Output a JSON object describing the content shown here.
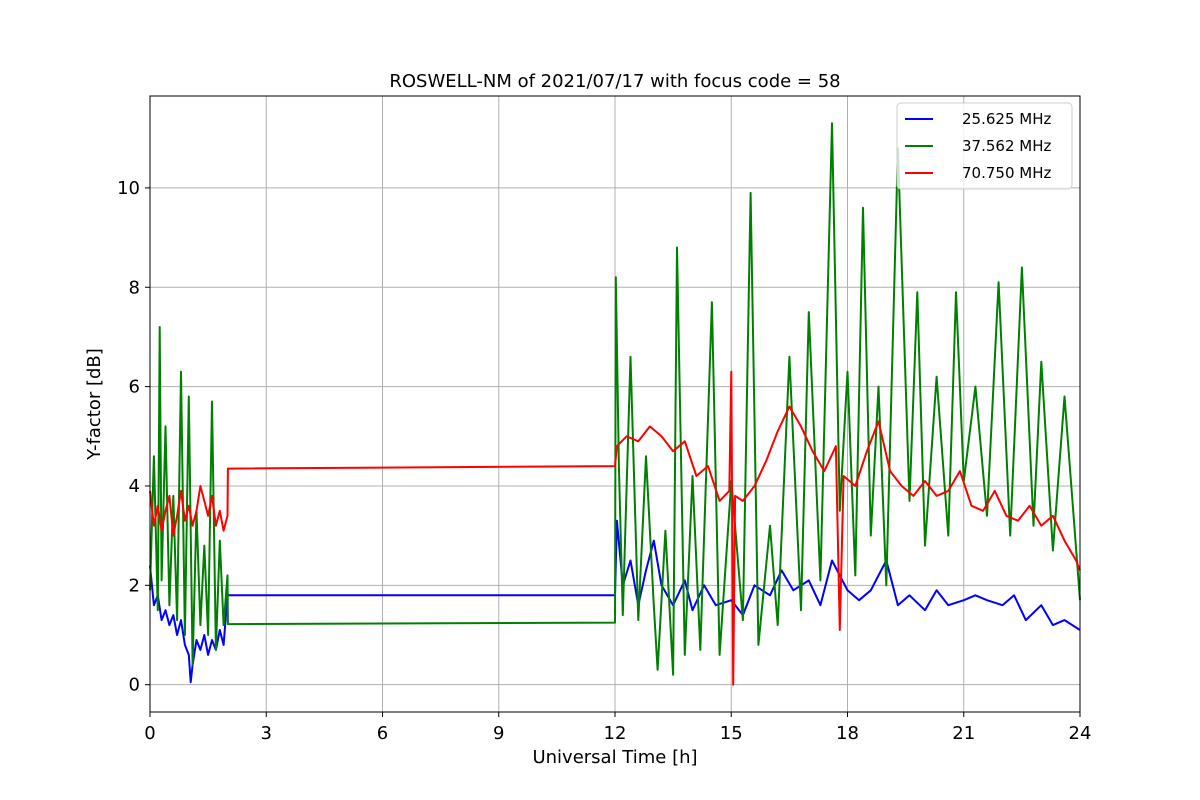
{
  "chart_data": {
    "type": "line",
    "title": "ROSWELL-NM of 2021/07/17 with focus code = 58",
    "xlabel": "Universal Time [h]",
    "ylabel": "Y-factor [dB]",
    "xlim": [
      0,
      24
    ],
    "ylim": [
      -0.55,
      11.85
    ],
    "xticks": [
      0,
      3,
      6,
      9,
      12,
      15,
      18,
      21,
      24
    ],
    "yticks": [
      0,
      2,
      4,
      6,
      8,
      10
    ],
    "grid": true,
    "legend_position": "top-right",
    "series": [
      {
        "name": "25.625 MHz",
        "color": "#0000ff",
        "x": [
          0,
          0.1,
          0.2,
          0.3,
          0.4,
          0.5,
          0.6,
          0.7,
          0.8,
          0.9,
          1.0,
          1.05,
          1.1,
          1.2,
          1.3,
          1.4,
          1.5,
          1.6,
          1.7,
          1.8,
          1.9,
          2.0,
          2.01,
          12.0,
          12.05,
          12.2,
          12.4,
          12.6,
          12.8,
          13.0,
          13.2,
          13.5,
          13.8,
          14.0,
          14.3,
          14.6,
          15.0,
          15.3,
          15.6,
          16.0,
          16.3,
          16.6,
          17.0,
          17.3,
          17.6,
          18.0,
          18.3,
          18.6,
          19.0,
          19.3,
          19.6,
          20.0,
          20.3,
          20.6,
          21.0,
          21.3,
          21.6,
          22.0,
          22.3,
          22.6,
          23.0,
          23.3,
          23.6,
          24.0
        ],
        "y": [
          2.4,
          1.6,
          1.8,
          1.3,
          1.5,
          1.2,
          1.4,
          1.0,
          1.3,
          0.8,
          0.6,
          0.05,
          0.4,
          0.9,
          0.7,
          1.0,
          0.6,
          0.9,
          0.7,
          1.1,
          0.8,
          1.8,
          1.8,
          1.8,
          3.3,
          2.0,
          2.5,
          1.6,
          2.3,
          2.9,
          2.0,
          1.6,
          2.1,
          1.5,
          2.0,
          1.6,
          1.7,
          1.4,
          2.0,
          1.8,
          2.3,
          1.9,
          2.1,
          1.6,
          2.5,
          1.9,
          1.7,
          1.9,
          2.5,
          1.6,
          1.8,
          1.5,
          1.9,
          1.6,
          1.7,
          1.8,
          1.7,
          1.6,
          1.8,
          1.3,
          1.6,
          1.2,
          1.3,
          1.1
        ]
      },
      {
        "name": "37.562 MHz",
        "color": "#008000",
        "x": [
          0,
          0.1,
          0.2,
          0.25,
          0.3,
          0.4,
          0.5,
          0.6,
          0.7,
          0.8,
          0.9,
          1.0,
          1.1,
          1.2,
          1.3,
          1.4,
          1.5,
          1.6,
          1.7,
          1.8,
          1.9,
          2.0,
          2.01,
          12.0,
          12.02,
          12.1,
          12.2,
          12.4,
          12.6,
          12.8,
          13.0,
          13.1,
          13.3,
          13.5,
          13.6,
          13.8,
          14.0,
          14.2,
          14.5,
          14.7,
          15.0,
          15.3,
          15.5,
          15.7,
          16.0,
          16.2,
          16.5,
          16.8,
          17.0,
          17.3,
          17.6,
          17.8,
          18.0,
          18.2,
          18.4,
          18.6,
          18.8,
          19.0,
          19.3,
          19.6,
          19.8,
          20.0,
          20.3,
          20.6,
          20.8,
          21.0,
          21.3,
          21.6,
          21.9,
          22.2,
          22.5,
          22.8,
          23.0,
          23.3,
          23.6,
          24.0
        ],
        "y": [
          1.9,
          4.6,
          1.5,
          7.2,
          2.1,
          5.2,
          1.6,
          3.8,
          1.3,
          6.3,
          1.0,
          5.8,
          0.4,
          3.5,
          1.2,
          2.8,
          1.0,
          5.7,
          0.7,
          2.9,
          1.2,
          2.2,
          1.22,
          1.25,
          8.2,
          4.4,
          1.4,
          6.6,
          1.3,
          4.6,
          1.6,
          0.3,
          3.1,
          0.2,
          8.8,
          0.6,
          4.2,
          0.7,
          7.7,
          0.6,
          4.1,
          1.3,
          9.9,
          0.8,
          3.2,
          1.2,
          6.6,
          1.5,
          7.5,
          2.1,
          11.3,
          3.5,
          6.3,
          2.2,
          9.6,
          3.0,
          6.0,
          2.0,
          10.8,
          3.7,
          7.9,
          2.8,
          6.2,
          3.0,
          7.9,
          4.1,
          6.0,
          3.4,
          8.1,
          3.0,
          8.4,
          3.2,
          6.5,
          2.7,
          5.8,
          1.7
        ]
      },
      {
        "name": "70.750 MHz",
        "color": "#ff0000",
        "x": [
          0,
          0.1,
          0.2,
          0.3,
          0.4,
          0.5,
          0.6,
          0.7,
          0.8,
          0.9,
          1.0,
          1.1,
          1.2,
          1.3,
          1.4,
          1.5,
          1.6,
          1.7,
          1.8,
          1.9,
          2.0,
          2.01,
          12.0,
          12.05,
          12.3,
          12.6,
          12.9,
          13.2,
          13.5,
          13.8,
          14.1,
          14.4,
          14.7,
          14.95,
          15.0,
          15.05,
          15.1,
          15.3,
          15.6,
          15.9,
          16.2,
          16.5,
          16.8,
          17.1,
          17.4,
          17.7,
          17.8,
          17.9,
          18.2,
          18.5,
          18.8,
          19.1,
          19.4,
          19.7,
          20.0,
          20.3,
          20.6,
          20.9,
          21.2,
          21.5,
          21.8,
          22.1,
          22.4,
          22.7,
          23.0,
          23.3,
          23.6,
          23.9,
          24.0
        ],
        "y": [
          3.9,
          3.2,
          3.6,
          3.1,
          3.5,
          3.8,
          3.0,
          3.4,
          3.9,
          3.3,
          3.6,
          3.2,
          3.5,
          4.0,
          3.7,
          3.4,
          3.8,
          3.2,
          3.5,
          3.1,
          3.4,
          4.35,
          4.4,
          4.8,
          5.0,
          4.9,
          5.2,
          5.0,
          4.7,
          4.9,
          4.2,
          4.4,
          3.7,
          3.9,
          6.3,
          0.0,
          3.8,
          3.7,
          4.0,
          4.5,
          5.1,
          5.6,
          5.2,
          4.7,
          4.3,
          4.8,
          1.1,
          4.2,
          4.0,
          4.7,
          5.3,
          4.3,
          4.0,
          3.8,
          4.1,
          3.8,
          3.9,
          4.3,
          3.6,
          3.5,
          3.9,
          3.4,
          3.3,
          3.6,
          3.2,
          3.4,
          2.9,
          2.5,
          2.3
        ]
      }
    ]
  }
}
